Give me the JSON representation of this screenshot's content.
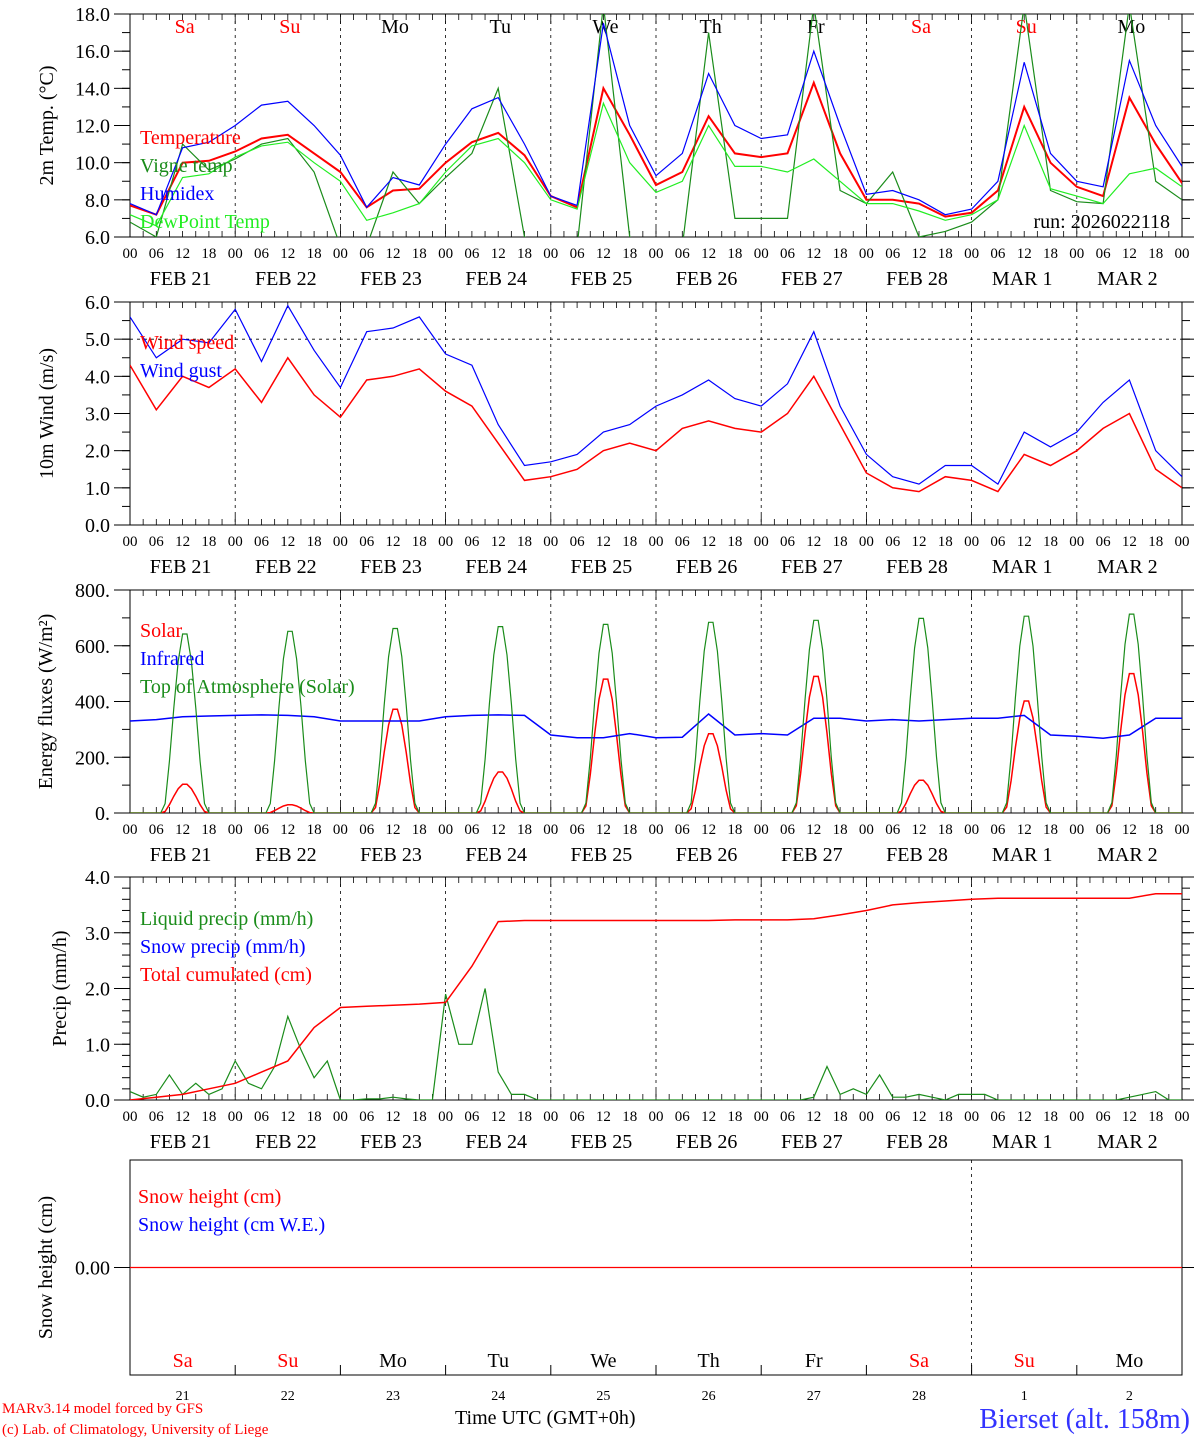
{
  "days": [
    "Sa",
    "Su",
    "Mo",
    "Tu",
    "We",
    "Th",
    "Fr",
    "Sa",
    "Su",
    "Mo"
  ],
  "day_colors": [
    "#ff0000",
    "#ff0000",
    "#000000",
    "#000000",
    "#000000",
    "#000000",
    "#000000",
    "#ff0000",
    "#ff0000",
    "#000000"
  ],
  "dates": [
    "FEB 21",
    "FEB 22",
    "FEB 23",
    "FEB 24",
    "FEB 25",
    "FEB 26",
    "FEB 27",
    "FEB 28",
    "MAR  1",
    "MAR  2"
  ],
  "date_numbers": [
    "21",
    "22",
    "23",
    "24",
    "25",
    "26",
    "27",
    "28",
    "1",
    "2"
  ],
  "hour_labels": [
    "00",
    "06",
    "12",
    "18"
  ],
  "footer": {
    "model": "MARv3.14 model forced by GFS",
    "copyright": "(c) Lab. of Climatology, University of Liege",
    "time_label": "Time UTC (GMT+0h)",
    "station": "Bierset (alt. 158m)"
  },
  "chart_data": [
    {
      "type": "line",
      "ylabel": "2m Temp. (°C)",
      "ylim": [
        6,
        18
      ],
      "yticks": [
        "6.0",
        "8.0",
        "10.0",
        "12.0",
        "14.0",
        "16.0",
        "18.0"
      ],
      "x_step_hours": 6,
      "annotation": "run: 2026022118",
      "series": [
        {
          "name": "Temperature",
          "color": "#ff0000",
          "width": 2,
          "values": [
            7.7,
            7.2,
            10.0,
            10.1,
            10.6,
            11.3,
            11.5,
            10.5,
            9.5,
            7.6,
            8.5,
            8.6,
            10.0,
            11.1,
            11.6,
            10.4,
            8.2,
            7.6,
            14.0,
            11.5,
            8.8,
            9.5,
            12.5,
            10.5,
            10.3,
            10.5,
            14.3,
            10.5,
            8.0,
            8.0,
            7.8,
            7.1,
            7.3,
            8.5,
            13.0,
            10.0,
            8.7,
            8.2,
            13.5,
            11.0,
            8.9
          ]
        },
        {
          "name": "Vigne temp",
          "color": "#1a8c1a",
          "width": 1.2,
          "values": [
            6.8,
            6.0,
            11.0,
            9.6,
            10.2,
            11.0,
            11.3,
            9.5,
            5.5,
            5.5,
            9.5,
            7.8,
            9.2,
            10.5,
            14.0,
            6.0,
            5.5,
            5.5,
            18.5,
            6.0,
            5.5,
            5.5,
            17.0,
            7.0,
            7.0,
            7.0,
            18.5,
            8.5,
            7.8,
            9.5,
            6.0,
            6.3,
            6.8,
            8.0,
            18.5,
            8.5,
            7.9,
            7.8,
            18.5,
            9.0,
            8.0
          ]
        },
        {
          "name": "Humidex",
          "color": "#0000ff",
          "width": 1.2,
          "values": [
            7.8,
            7.2,
            10.8,
            11.1,
            12.0,
            13.1,
            13.3,
            12.0,
            10.4,
            7.6,
            9.2,
            8.8,
            11.0,
            12.9,
            13.5,
            11.0,
            8.2,
            7.7,
            17.5,
            12.0,
            9.3,
            10.5,
            14.8,
            12.0,
            11.3,
            11.5,
            16.0,
            12.0,
            8.3,
            8.5,
            8.0,
            7.2,
            7.5,
            9.0,
            15.4,
            10.5,
            9.0,
            8.7,
            15.5,
            12.0,
            9.8
          ]
        },
        {
          "name": "DewPoint Temp",
          "color": "#22ee22",
          "width": 1.2,
          "values": [
            7.2,
            6.6,
            9.2,
            9.4,
            10.3,
            10.9,
            11.1,
            10.0,
            9.0,
            6.9,
            7.3,
            7.8,
            9.5,
            10.9,
            11.3,
            10.0,
            8.0,
            7.5,
            13.2,
            10.0,
            8.4,
            9.0,
            12.0,
            9.8,
            9.8,
            9.5,
            10.2,
            9.0,
            7.8,
            7.8,
            7.4,
            6.9,
            7.2,
            8.0,
            12.0,
            8.6,
            8.2,
            7.8,
            9.4,
            9.7,
            8.7
          ]
        }
      ]
    },
    {
      "type": "line",
      "ylabel": "10m Wind (m/s)",
      "ylim": [
        0,
        6
      ],
      "yticks": [
        "0.0",
        "1.0",
        "2.0",
        "3.0",
        "4.0",
        "5.0",
        "6.0"
      ],
      "reference_line": 5.0,
      "x_step_hours": 6,
      "series": [
        {
          "name": "Wind speed",
          "color": "#ff0000",
          "width": 1.5,
          "values": [
            4.3,
            3.1,
            4.0,
            3.7,
            4.2,
            3.3,
            4.5,
            3.5,
            2.9,
            3.9,
            4.0,
            4.2,
            3.6,
            3.2,
            2.2,
            1.2,
            1.3,
            1.5,
            2.0,
            2.2,
            2.0,
            2.6,
            2.8,
            2.6,
            2.5,
            3.0,
            4.0,
            2.7,
            1.4,
            1.0,
            0.9,
            1.3,
            1.2,
            0.9,
            1.9,
            1.6,
            2.0,
            2.6,
            3.0,
            1.5,
            1.0
          ]
        },
        {
          "name": "Wind gust",
          "color": "#0000ff",
          "width": 1.2,
          "values": [
            5.6,
            4.5,
            5.0,
            4.9,
            5.8,
            4.4,
            5.9,
            4.7,
            3.7,
            5.2,
            5.3,
            5.6,
            4.6,
            4.3,
            2.7,
            1.6,
            1.7,
            1.9,
            2.5,
            2.7,
            3.2,
            3.5,
            3.9,
            3.4,
            3.2,
            3.8,
            5.2,
            3.2,
            1.9,
            1.3,
            1.1,
            1.6,
            1.6,
            1.1,
            2.5,
            2.1,
            2.5,
            3.3,
            3.9,
            2.0,
            1.3
          ]
        }
      ]
    },
    {
      "type": "line",
      "ylabel": "Energy fluxes (W/m²)",
      "ylim": [
        0,
        800
      ],
      "yticks": [
        "0.",
        "200.",
        "400.",
        "600.",
        "800."
      ],
      "series": [
        {
          "name": "Solar",
          "color": "#ff0000",
          "width": 1.5,
          "daily_peak": [
            105,
            30,
            380,
            150,
            490,
            290,
            500,
            120,
            410,
            510
          ]
        },
        {
          "name": "Infrared",
          "color": "#0000ff",
          "width": 1.5,
          "x_step_hours": 6,
          "values": [
            330,
            335,
            345,
            348,
            350,
            352,
            350,
            345,
            330,
            330,
            330,
            330,
            345,
            350,
            352,
            350,
            280,
            270,
            270,
            285,
            270,
            272,
            355,
            280,
            285,
            280,
            340,
            340,
            330,
            335,
            330,
            335,
            340,
            340,
            350,
            280,
            275,
            268,
            280,
            340,
            340
          ]
        },
        {
          "name": "Top of Atmosphere (Solar)",
          "color": "#1a8c1a",
          "width": 1.2,
          "daily_peak": [
            655,
            665,
            675,
            682,
            690,
            698,
            705,
            712,
            720,
            728
          ]
        }
      ]
    },
    {
      "type": "line",
      "ylabel": "Precip (mm/h)",
      "ylim": [
        0,
        4
      ],
      "yticks": [
        "0.0",
        "1.0",
        "2.0",
        "3.0",
        "4.0"
      ],
      "series": [
        {
          "name": "Liquid precip (mm/h)",
          "color": "#1a8c1a",
          "width": 1.2,
          "x_step_hours": 3,
          "values": [
            0.15,
            0.05,
            0.1,
            0.45,
            0.1,
            0.3,
            0.1,
            0.2,
            0.7,
            0.3,
            0.2,
            0.6,
            1.5,
            0.9,
            0.4,
            0.7,
            0,
            0,
            0.02,
            0.02,
            0.05,
            0.02,
            0,
            0,
            1.9,
            1.0,
            1.0,
            2.0,
            0.5,
            0.1,
            0.1,
            0,
            0,
            0,
            0,
            0,
            0,
            0,
            0,
            0,
            0,
            0,
            0,
            0,
            0,
            0,
            0,
            0,
            0,
            0,
            0,
            0,
            0.05,
            0.6,
            0.1,
            0.2,
            0.1,
            0.45,
            0.05,
            0.05,
            0.1,
            0.05,
            0,
            0.1,
            0.1,
            0.1,
            0,
            0,
            0,
            0,
            0,
            0,
            0,
            0,
            0,
            0,
            0.05,
            0.1,
            0.15,
            0,
            0
          ]
        },
        {
          "name": "Snow precip (mm/h)",
          "color": "#0000ff",
          "width": 1.2,
          "x_step_hours": 6,
          "values": []
        },
        {
          "name": "Total cumulated (cm)",
          "color": "#ff0000",
          "width": 1.5,
          "x_step_hours": 6,
          "values": [
            0,
            0.05,
            0.1,
            0.2,
            0.3,
            0.5,
            0.7,
            1.3,
            1.66,
            1.68,
            1.7,
            1.72,
            1.75,
            2.4,
            3.2,
            3.22,
            3.22,
            3.22,
            3.22,
            3.22,
            3.22,
            3.22,
            3.22,
            3.23,
            3.23,
            3.23,
            3.25,
            3.32,
            3.4,
            3.5,
            3.54,
            3.57,
            3.6,
            3.62,
            3.62,
            3.62,
            3.62,
            3.62,
            3.62,
            3.7,
            3.7
          ]
        }
      ]
    },
    {
      "type": "line",
      "ylabel": "Snow height (cm)",
      "ylim": [
        -1,
        1
      ],
      "yticks": [
        "0.00"
      ],
      "series": [
        {
          "name": "Snow height (cm)",
          "color": "#ff0000",
          "width": 1.2,
          "x_step_hours": 6,
          "values": [
            0,
            0,
            0,
            0,
            0,
            0,
            0,
            0,
            0,
            0,
            0,
            0,
            0,
            0,
            0,
            0,
            0,
            0,
            0,
            0,
            0,
            0,
            0,
            0,
            0,
            0,
            0,
            0,
            0,
            0,
            0,
            0,
            0,
            0,
            0,
            0,
            0,
            0,
            0,
            0,
            0
          ]
        },
        {
          "name": "Snow height (cm W.E.)",
          "color": "#0000ff",
          "width": 1.2,
          "x_step_hours": 6,
          "values": []
        }
      ]
    }
  ]
}
